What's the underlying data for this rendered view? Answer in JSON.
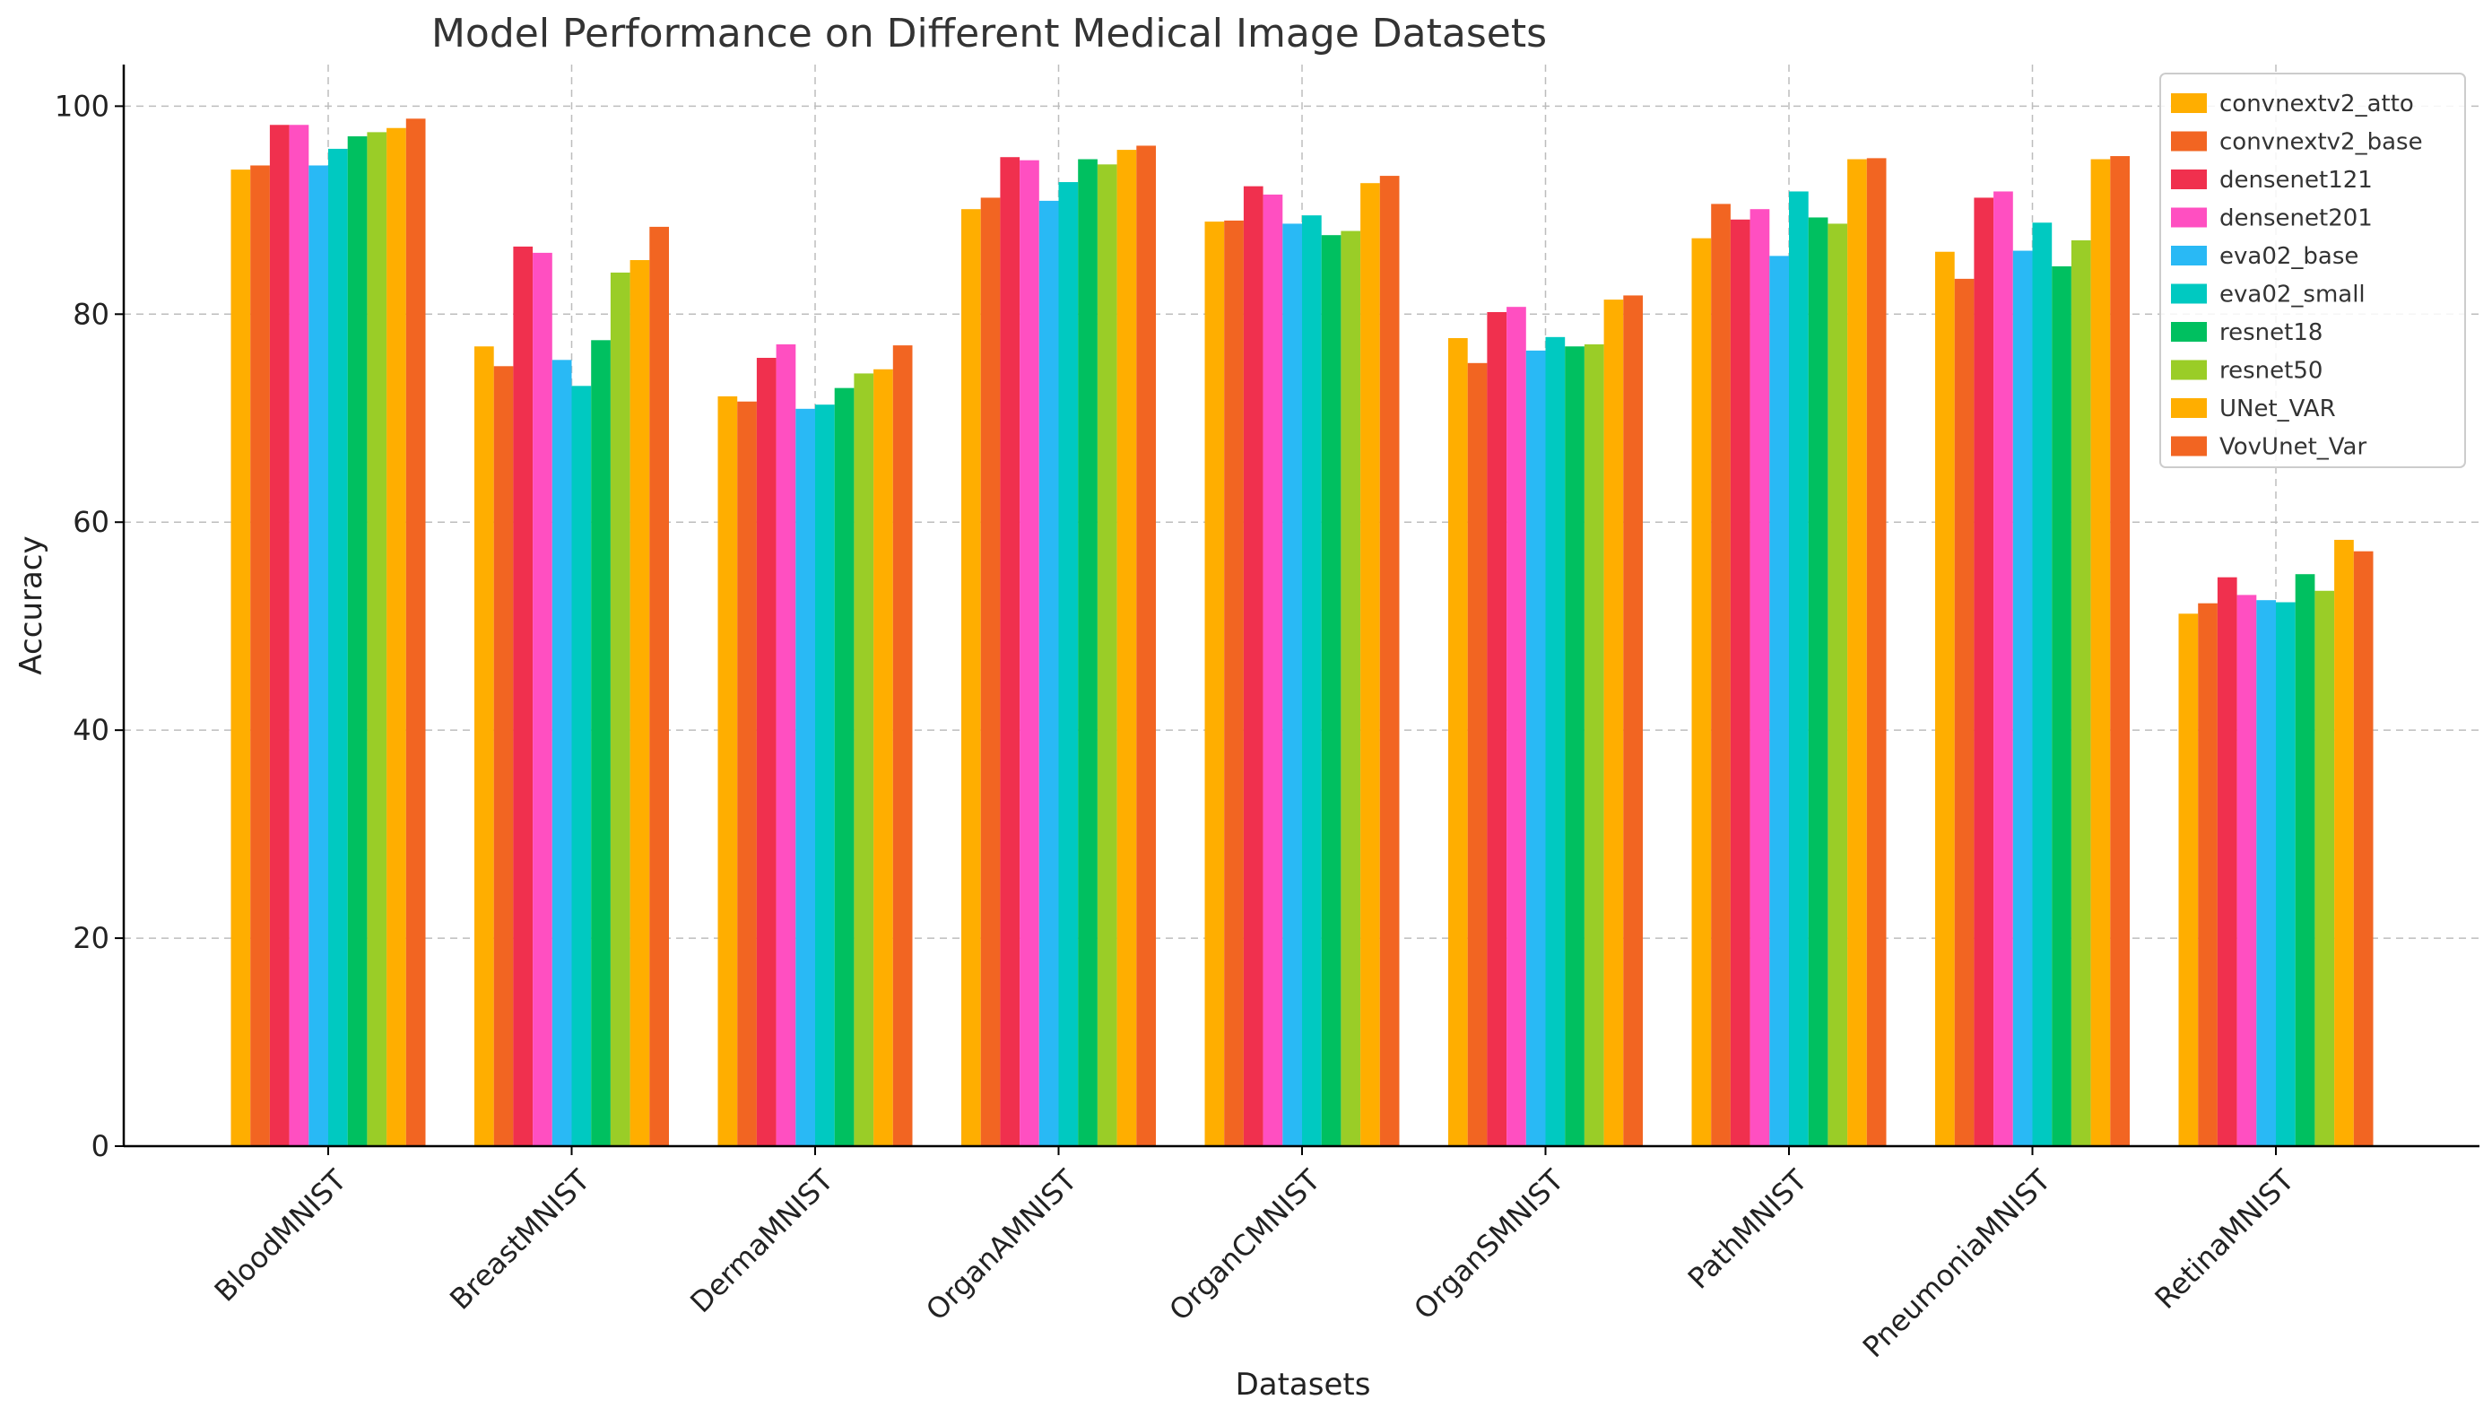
{
  "chart_data": {
    "type": "bar",
    "title": "Model Performance on Different Medical Image Datasets",
    "xlabel": "Datasets",
    "ylabel": "Accuracy",
    "ylim": [
      0,
      104
    ],
    "yticks": [
      0,
      20,
      40,
      60,
      80,
      100
    ],
    "grid": true,
    "legend_position": "top-right",
    "categories": [
      "BloodMNIST",
      "BreastMNIST",
      "DermaMNIST",
      "OrganAMNIST",
      "OrganCMNIST",
      "OrganSMNIST",
      "PathMNIST",
      "PneumoniaMNIST",
      "RetinaMNIST"
    ],
    "series": [
      {
        "name": "convnextv2_atto",
        "color": "#FFAE00",
        "values": [
          93.9,
          76.9,
          72.1,
          90.1,
          88.9,
          77.7,
          87.3,
          86.0,
          51.2
        ]
      },
      {
        "name": "convnextv2_base",
        "color": "#F26522",
        "values": [
          94.3,
          75.0,
          71.6,
          91.2,
          89.0,
          75.3,
          90.6,
          83.4,
          52.2
        ]
      },
      {
        "name": "densenet121",
        "color": "#F0304E",
        "values": [
          98.2,
          86.5,
          75.8,
          95.1,
          92.3,
          80.2,
          89.1,
          91.2,
          54.7
        ]
      },
      {
        "name": "densenet201",
        "color": "#FF4FC1",
        "values": [
          98.2,
          85.9,
          77.1,
          94.8,
          91.5,
          80.7,
          90.1,
          91.8,
          53.0
        ]
      },
      {
        "name": "eva02_base",
        "color": "#29B9F5",
        "values": [
          94.3,
          75.6,
          70.9,
          90.9,
          88.7,
          76.5,
          85.6,
          86.1,
          52.5
        ]
      },
      {
        "name": "eva02_small",
        "color": "#00C9C1",
        "values": [
          95.9,
          73.1,
          71.3,
          92.7,
          89.5,
          77.8,
          91.8,
          88.8,
          52.3
        ]
      },
      {
        "name": "resnet18",
        "color": "#00C060",
        "values": [
          97.1,
          77.5,
          72.9,
          94.9,
          87.6,
          76.9,
          89.3,
          84.6,
          55.0
        ]
      },
      {
        "name": "resnet50",
        "color": "#9ACD27",
        "values": [
          97.5,
          84.0,
          74.3,
          94.4,
          88.0,
          77.1,
          88.7,
          87.1,
          53.4
        ]
      },
      {
        "name": "UNet_VAR",
        "color": "#FFAE00",
        "values": [
          97.9,
          85.2,
          74.7,
          95.8,
          92.6,
          81.4,
          94.9,
          94.9,
          58.3
        ]
      },
      {
        "name": "VovUnet_Var",
        "color": "#F26522",
        "values": [
          98.8,
          88.4,
          77.0,
          96.2,
          93.3,
          81.8,
          95.0,
          95.2,
          57.2
        ]
      }
    ]
  }
}
